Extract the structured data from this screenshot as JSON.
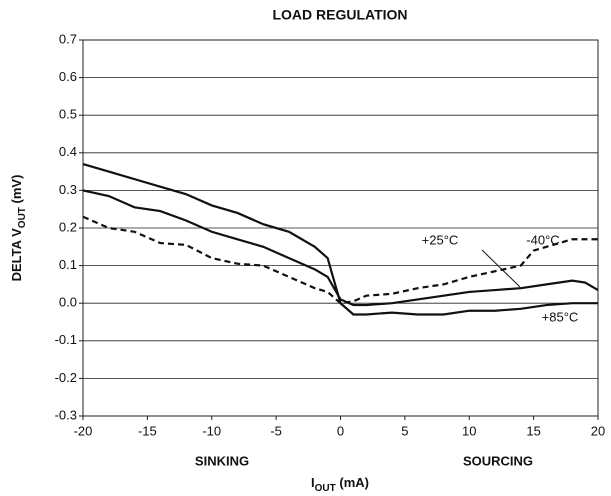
{
  "chart_data": {
    "type": "line",
    "title": "LOAD REGULATION",
    "x_label": [
      "I",
      "OUT",
      " (mA)"
    ],
    "y_label": [
      "DELTA V",
      "OUT",
      " (mV)"
    ],
    "annotations": [
      "SINKING",
      "SOURCING"
    ],
    "xlim": [
      -20,
      20
    ],
    "xticks": [
      -20,
      -15,
      -10,
      -5,
      0,
      5,
      10,
      15,
      20
    ],
    "ylim": [
      -0.3,
      0.7
    ],
    "yticks": [
      -0.3,
      -0.2,
      -0.1,
      {
        "value": 0,
        "label": "0.0"
      },
      0.1,
      0.2,
      0.3,
      0.4,
      0.5,
      0.6,
      0.7
    ],
    "grid": true,
    "series": [
      {
        "name": "-40°C",
        "color": "#111111",
        "dashed": true,
        "x": [
          -20,
          -18,
          -16,
          -14,
          -12,
          -10,
          -8,
          -6,
          -4,
          -2,
          -1,
          0,
          1,
          2,
          4,
          6,
          8,
          10,
          12,
          14,
          15,
          16,
          18,
          20
        ],
        "values": [
          0.23,
          0.2,
          0.19,
          0.16,
          0.155,
          0.12,
          0.105,
          0.1,
          0.07,
          0.04,
          0.03,
          0.0,
          0.005,
          0.02,
          0.025,
          0.04,
          0.05,
          0.07,
          0.085,
          0.1,
          0.14,
          0.15,
          0.17,
          0.17
        ]
      },
      {
        "name": "+25°C",
        "color": "#111111",
        "dashed": false,
        "x": [
          -20,
          -18,
          -16,
          -14,
          -12,
          -10,
          -8,
          -6,
          -4,
          -2,
          -1,
          0,
          1,
          2,
          4,
          6,
          8,
          10,
          12,
          14,
          16,
          18,
          19,
          20
        ],
        "values": [
          0.3,
          0.285,
          0.255,
          0.245,
          0.22,
          0.19,
          0.17,
          0.15,
          0.12,
          0.09,
          0.07,
          0.01,
          -0.005,
          -0.005,
          0.0,
          0.01,
          0.02,
          0.03,
          0.035,
          0.04,
          0.05,
          0.06,
          0.055,
          0.035
        ]
      },
      {
        "name": "+85°C",
        "color": "#111111",
        "dashed": false,
        "x": [
          -20,
          -18,
          -16,
          -14,
          -12,
          -10,
          -8,
          -6,
          -4,
          -2,
          -1,
          -0.5,
          0,
          1,
          2,
          4,
          6,
          8,
          10,
          12,
          14,
          16,
          18,
          20
        ],
        "values": [
          0.37,
          0.35,
          0.33,
          0.31,
          0.29,
          0.26,
          0.24,
          0.21,
          0.19,
          0.15,
          0.12,
          0.06,
          0.0,
          -0.03,
          -0.03,
          -0.025,
          -0.03,
          -0.03,
          -0.02,
          -0.02,
          -0.015,
          -0.005,
          0.0,
          0.0
        ]
      }
    ]
  }
}
